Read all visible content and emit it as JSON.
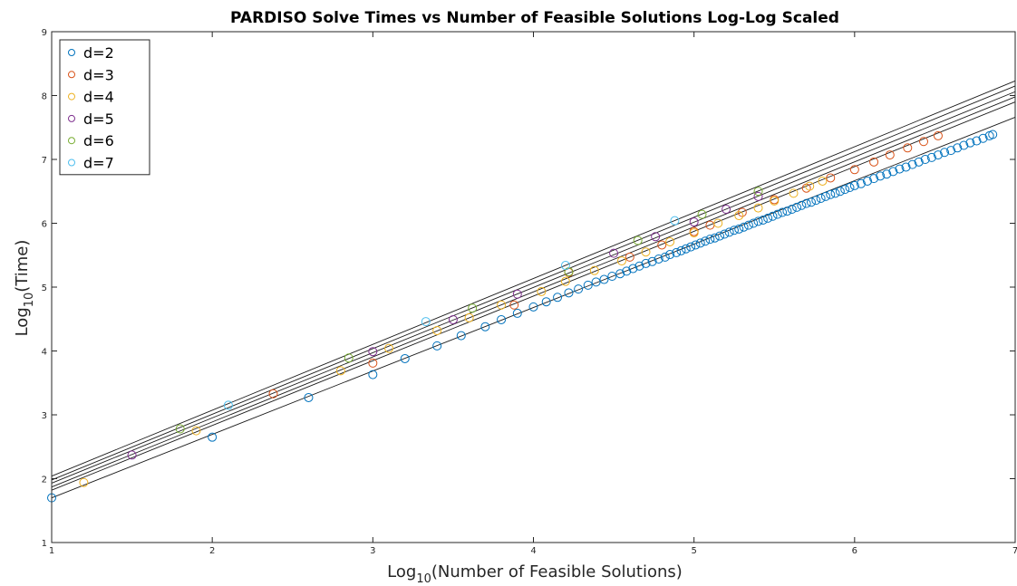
{
  "chart_data": {
    "type": "scatter",
    "title": "PARDISO Solve Times vs Number of Feasible Solutions Log-Log Scaled",
    "xlabel": {
      "base": "Log",
      "sub": "10",
      "rest": "(Number of Feasible Solutions)"
    },
    "ylabel": {
      "base": "Log",
      "sub": "10",
      "rest": "(Time)"
    },
    "xlim": [
      1,
      7
    ],
    "ylim": [
      1,
      9
    ],
    "xticks": [
      1,
      2,
      3,
      4,
      5,
      6,
      7
    ],
    "yticks": [
      1,
      2,
      3,
      4,
      5,
      6,
      7,
      8,
      9
    ],
    "grid": false,
    "legend_position": "top-left",
    "fit_line_color": "#1a1a1a",
    "series": [
      {
        "name": "d=2",
        "color": "#0072BD",
        "x": [
          1.0,
          2.0,
          2.6,
          3.0,
          3.2,
          3.4,
          3.55,
          3.7,
          3.8,
          3.9,
          4.0,
          4.08,
          4.15,
          4.22,
          4.28,
          4.34,
          4.39,
          4.44,
          4.49,
          4.54,
          4.58,
          4.62,
          4.66,
          4.7,
          4.74,
          4.78,
          4.82,
          4.85,
          4.89,
          4.92,
          4.95,
          4.98,
          5.01,
          5.04,
          5.07,
          5.1,
          5.13,
          5.16,
          5.19,
          5.22,
          5.25,
          5.28,
          5.31,
          5.34,
          5.37,
          5.4,
          5.43,
          5.46,
          5.49,
          5.52,
          5.55,
          5.58,
          5.61,
          5.64,
          5.67,
          5.7,
          5.73,
          5.76,
          5.79,
          5.82,
          5.85,
          5.88,
          5.91,
          5.94,
          5.97,
          6.0,
          6.04,
          6.08,
          6.12,
          6.16,
          6.2,
          6.24,
          6.28,
          6.32,
          6.36,
          6.4,
          6.44,
          6.48,
          6.52,
          6.56,
          6.6,
          6.64,
          6.68,
          6.72,
          6.76,
          6.8,
          6.84,
          6.86
        ],
        "y": [
          1.7,
          2.65,
          3.27,
          3.63,
          3.88,
          4.08,
          4.24,
          4.38,
          4.49,
          4.59,
          4.69,
          4.77,
          4.84,
          4.91,
          4.97,
          5.03,
          5.08,
          5.12,
          5.17,
          5.21,
          5.25,
          5.29,
          5.33,
          5.37,
          5.4,
          5.44,
          5.47,
          5.51,
          5.54,
          5.57,
          5.6,
          5.63,
          5.66,
          5.69,
          5.72,
          5.75,
          5.77,
          5.8,
          5.83,
          5.86,
          5.89,
          5.91,
          5.94,
          5.97,
          6.0,
          6.03,
          6.05,
          6.08,
          6.11,
          6.14,
          6.17,
          6.19,
          6.22,
          6.25,
          6.28,
          6.31,
          6.33,
          6.36,
          6.39,
          6.42,
          6.45,
          6.47,
          6.5,
          6.53,
          6.56,
          6.59,
          6.62,
          6.66,
          6.7,
          6.74,
          6.77,
          6.81,
          6.85,
          6.88,
          6.92,
          6.96,
          7.0,
          7.03,
          7.07,
          7.11,
          7.14,
          7.18,
          7.22,
          7.26,
          7.29,
          7.33,
          7.37,
          7.39
        ]
      },
      {
        "name": "d=3",
        "color": "#D95319",
        "x": [
          2.38,
          3.0,
          3.88,
          4.22,
          4.6,
          4.8,
          5.0,
          5.1,
          5.3,
          5.5,
          5.7,
          5.85,
          6.0,
          6.12,
          6.22,
          6.33,
          6.43,
          6.52
        ],
        "y": [
          3.33,
          3.81,
          4.72,
          5.23,
          5.47,
          5.66,
          5.87,
          5.97,
          6.17,
          6.37,
          6.55,
          6.71,
          6.84,
          6.96,
          7.07,
          7.18,
          7.28,
          7.37
        ]
      },
      {
        "name": "d=4",
        "color": "#EDB120",
        "x": [
          1.2,
          1.9,
          2.8,
          3.1,
          3.4,
          3.6,
          3.8,
          4.05,
          4.2,
          4.38,
          4.55,
          4.7,
          4.85,
          5.0,
          5.15,
          5.28,
          5.4,
          5.5,
          5.62,
          5.72,
          5.8
        ],
        "y": [
          1.94,
          2.75,
          3.69,
          4.04,
          4.32,
          4.52,
          4.72,
          4.93,
          5.09,
          5.26,
          5.41,
          5.55,
          5.71,
          5.85,
          6.0,
          6.12,
          6.24,
          6.35,
          6.47,
          6.58,
          6.66
        ]
      },
      {
        "name": "d=5",
        "color": "#7E2F8E",
        "x": [
          1.5,
          3.0,
          3.5,
          3.9,
          4.5,
          4.76,
          5.0,
          5.2,
          5.4
        ],
        "y": [
          2.37,
          3.99,
          4.49,
          4.89,
          5.53,
          5.79,
          6.02,
          6.22,
          6.42
        ]
      },
      {
        "name": "d=6",
        "color": "#77AC30",
        "x": [
          1.8,
          2.85,
          3.62,
          4.22,
          4.65,
          5.05,
          5.4
        ],
        "y": [
          2.78,
          3.89,
          4.67,
          5.24,
          5.73,
          6.14,
          6.5
        ]
      },
      {
        "name": "d=7",
        "color": "#4DBEEE",
        "x": [
          2.1,
          3.33,
          4.2,
          4.88
        ],
        "y": [
          3.15,
          4.46,
          5.34,
          6.04
        ]
      }
    ],
    "fit_lines": [
      {
        "y_at_xmin": 1.7,
        "y_at_xmax": 7.66
      },
      {
        "y_at_xmin": 1.82,
        "y_at_xmax": 7.9
      },
      {
        "y_at_xmin": 1.87,
        "y_at_xmax": 7.98
      },
      {
        "y_at_xmin": 1.93,
        "y_at_xmax": 8.06
      },
      {
        "y_at_xmin": 1.98,
        "y_at_xmax": 8.15
      },
      {
        "y_at_xmin": 2.04,
        "y_at_xmax": 8.23
      }
    ]
  }
}
